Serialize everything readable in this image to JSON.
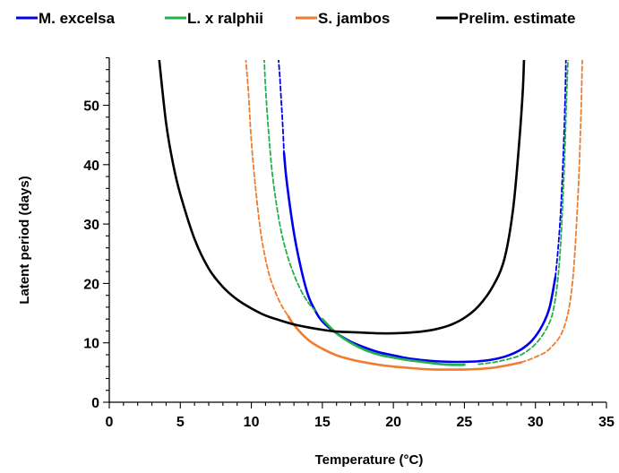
{
  "chart_data": {
    "type": "line",
    "title": "",
    "xlabel": "Temperature (°C)",
    "ylabel": "Latent period (days)",
    "xlim": [
      0,
      35
    ],
    "ylim": [
      0,
      58
    ],
    "xticks": [
      "0",
      "5",
      "10",
      "15",
      "20",
      "25",
      "30",
      "35"
    ],
    "yticks": [
      "0",
      "10",
      "20",
      "30",
      "40",
      "50"
    ],
    "grid": false,
    "legend": "top",
    "series": [
      {
        "name": "M. excelsa",
        "color": "#0000ee",
        "solid_range": [
          12.3,
          31.4
        ],
        "points": [
          [
            11.9,
            58
          ],
          [
            12.0,
            55
          ],
          [
            12.1,
            51
          ],
          [
            12.2,
            47
          ],
          [
            12.3,
            42
          ],
          [
            12.5,
            37
          ],
          [
            13,
            28.5
          ],
          [
            13.5,
            22.5
          ],
          [
            14,
            18
          ],
          [
            14.5,
            15.4
          ],
          [
            15,
            13.6
          ],
          [
            16,
            11.6
          ],
          [
            17,
            10.2
          ],
          [
            18,
            9.2
          ],
          [
            19,
            8.4
          ],
          [
            20,
            7.9
          ],
          [
            21,
            7.4
          ],
          [
            22,
            7.1
          ],
          [
            23,
            6.9
          ],
          [
            24,
            6.8
          ],
          [
            25,
            6.8
          ],
          [
            26,
            6.9
          ],
          [
            27,
            7.2
          ],
          [
            28,
            7.8
          ],
          [
            29,
            8.9
          ],
          [
            29.8,
            10.5
          ],
          [
            30.5,
            13
          ],
          [
            31,
            16
          ],
          [
            31.4,
            21
          ],
          [
            31.6,
            26
          ],
          [
            31.8,
            33
          ],
          [
            32,
            44
          ],
          [
            32.1,
            52
          ],
          [
            32.15,
            58
          ]
        ]
      },
      {
        "name": "L. x ralphii",
        "color": "#22b04a",
        "solid_range": [
          14.9,
          25.8
        ],
        "points": [
          [
            10.9,
            58
          ],
          [
            11,
            53
          ],
          [
            11.2,
            46
          ],
          [
            11.5,
            38
          ],
          [
            12,
            30
          ],
          [
            12.5,
            25
          ],
          [
            13,
            21.5
          ],
          [
            13.5,
            18.8
          ],
          [
            14,
            16.8
          ],
          [
            14.5,
            15.4
          ],
          [
            15,
            14
          ],
          [
            16,
            11.6
          ],
          [
            17,
            10
          ],
          [
            18,
            8.8
          ],
          [
            19,
            8
          ],
          [
            20,
            7.5
          ],
          [
            21,
            7.1
          ],
          [
            22,
            6.8
          ],
          [
            23,
            6.5
          ],
          [
            24,
            6.3
          ],
          [
            25,
            6.3
          ],
          [
            26,
            6.4
          ],
          [
            27,
            6.7
          ],
          [
            28,
            7.2
          ],
          [
            29,
            8
          ],
          [
            30,
            9.8
          ],
          [
            30.8,
            12.5
          ],
          [
            31.3,
            16
          ],
          [
            31.7,
            24
          ],
          [
            32,
            38
          ],
          [
            32.2,
            52
          ],
          [
            32.3,
            58
          ]
        ]
      },
      {
        "name": "S. jambos",
        "color": "#ee7d30",
        "solid_range": [
          12.6,
          29.0
        ],
        "points": [
          [
            9.6,
            58
          ],
          [
            9.8,
            52
          ],
          [
            10,
            44
          ],
          [
            10.3,
            36
          ],
          [
            10.7,
            28
          ],
          [
            11.2,
            22
          ],
          [
            11.7,
            18.5
          ],
          [
            12.2,
            16
          ],
          [
            12.6,
            14.5
          ],
          [
            13,
            13
          ],
          [
            14,
            10.5
          ],
          [
            15,
            9
          ],
          [
            16,
            7.9
          ],
          [
            17,
            7.2
          ],
          [
            18,
            6.7
          ],
          [
            19,
            6.3
          ],
          [
            20,
            6
          ],
          [
            21,
            5.8
          ],
          [
            22,
            5.6
          ],
          [
            23,
            5.5
          ],
          [
            24,
            5.5
          ],
          [
            25,
            5.5
          ],
          [
            26,
            5.6
          ],
          [
            27,
            5.8
          ],
          [
            28,
            6.2
          ],
          [
            29,
            6.7
          ],
          [
            30,
            7.6
          ],
          [
            31,
            9
          ],
          [
            32,
            12.5
          ],
          [
            32.6,
            20
          ],
          [
            33,
            35
          ],
          [
            33.2,
            48
          ],
          [
            33.3,
            58
          ]
        ]
      },
      {
        "name": "Prelim. estimate",
        "color": "#000000",
        "solid_range": [
          3.5,
          29.5
        ],
        "points": [
          [
            3.5,
            58
          ],
          [
            4,
            47
          ],
          [
            4.5,
            40
          ],
          [
            5,
            35
          ],
          [
            6,
            27.5
          ],
          [
            7,
            22.5
          ],
          [
            8,
            19.4
          ],
          [
            9,
            17.3
          ],
          [
            10,
            15.8
          ],
          [
            11,
            14.6
          ],
          [
            12,
            13.8
          ],
          [
            13,
            13.1
          ],
          [
            14,
            12.6
          ],
          [
            15,
            12.2
          ],
          [
            16,
            11.9
          ],
          [
            17,
            11.8
          ],
          [
            18,
            11.7
          ],
          [
            19,
            11.6
          ],
          [
            20,
            11.6
          ],
          [
            21,
            11.7
          ],
          [
            22,
            11.9
          ],
          [
            23,
            12.3
          ],
          [
            24,
            13
          ],
          [
            25,
            14.2
          ],
          [
            26,
            16.2
          ],
          [
            27,
            19.5
          ],
          [
            27.8,
            24
          ],
          [
            28.4,
            32
          ],
          [
            28.8,
            42
          ],
          [
            29.1,
            52
          ],
          [
            29.2,
            58
          ]
        ]
      }
    ]
  }
}
